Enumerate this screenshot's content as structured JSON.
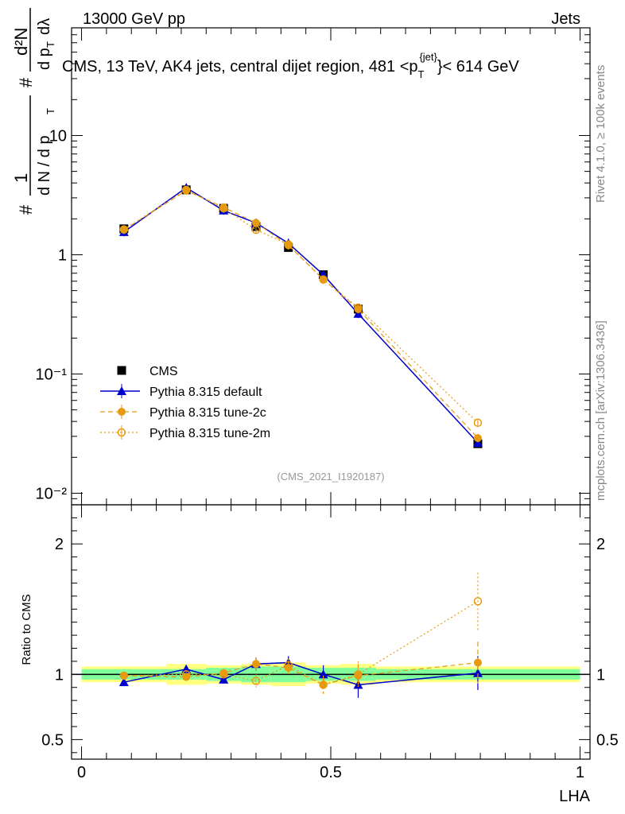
{
  "header": {
    "left": "13000 GeV pp",
    "right": "Jets"
  },
  "title": {
    "main": "CMS, 13 TeV, AK4 jets, central dijet region, 481 <p",
    "sub": "T",
    "sup": "{jet}",
    "tail": "}< 614 GeV"
  },
  "ylabel_main": "1/N dN/dpT d²N/dpT dλ",
  "side_labels": {
    "rivet": "Rivet 4.1.0, ≥ 100k events",
    "mcplots": "mcplots.cern.ch [arXiv:1306.3436]"
  },
  "analysis_tag": "(CMS_2021_I1920187)",
  "ratio_ylabel": "Ratio to CMS",
  "xlabel": "LHA",
  "legend": [
    {
      "name": "CMS",
      "label": "CMS",
      "color": "#000000",
      "marker": "square"
    },
    {
      "name": "pythia-default",
      "label": "Pythia 8.315 default",
      "color": "#0000cc",
      "marker": "triangle"
    },
    {
      "name": "pythia-tune-2c",
      "label": "Pythia 8.315 tune-2c",
      "color": "#e69a10",
      "marker": "dot"
    },
    {
      "name": "pythia-tune-2m",
      "label": "Pythia 8.315 tune-2m",
      "color": "#e69a10",
      "marker": "circle"
    }
  ],
  "main_axis": {
    "yscale": "log",
    "ylim": [
      0.008,
      80
    ],
    "ytick_labels": [
      "10⁻²",
      "10⁻¹",
      "1",
      "10"
    ],
    "ytick_values": [
      0.01,
      0.1,
      1,
      10
    ]
  },
  "ratio_axis": {
    "ylim": [
      0.35,
      2.3
    ],
    "ytick_labels": [
      "0.5",
      "1",
      "2"
    ],
    "ytick_values": [
      0.5,
      1,
      2
    ]
  },
  "x_axis": {
    "xlim": [
      -0.02,
      1.02
    ],
    "xtick_labels": [
      "0",
      "0.5",
      "1"
    ],
    "xtick_values": [
      0,
      0.5,
      1
    ]
  },
  "chart_data": {
    "type": "scatter",
    "title": "CMS, 13 TeV, AK4 jets, central dijet region, 481 < pT{jet} < 614 GeV",
    "xlabel": "LHA",
    "ylabel": "1/N dN/dpT d²N/dpT dλ",
    "bins": [
      [
        0,
        0.17
      ],
      [
        0.17,
        0.25
      ],
      [
        0.25,
        0.32
      ],
      [
        0.32,
        0.38
      ],
      [
        0.38,
        0.45
      ],
      [
        0.45,
        0.52
      ],
      [
        0.52,
        0.59
      ],
      [
        0.59,
        1.0
      ]
    ],
    "x": [
      0.085,
      0.21,
      0.285,
      0.35,
      0.415,
      0.485,
      0.555,
      0.795
    ],
    "series": [
      {
        "name": "CMS",
        "values": [
          1.65,
          3.5,
          2.45,
          1.72,
          1.15,
          0.68,
          0.35,
          0.026
        ],
        "stat_band": [
          0.04,
          0.04,
          0.05,
          0.06,
          0.06,
          0.05,
          0.05,
          0.04
        ],
        "total_band": [
          0.06,
          0.08,
          0.07,
          0.08,
          0.09,
          0.07,
          0.08,
          0.06
        ]
      },
      {
        "name": "Pythia 8.315 default",
        "values": [
          1.55,
          3.65,
          2.35,
          1.85,
          1.25,
          0.68,
          0.32,
          0.0265
        ],
        "ratio": [
          0.94,
          1.04,
          0.96,
          1.08,
          1.09,
          1.0,
          0.92,
          1.01
        ],
        "ratio_err": [
          0.02,
          0.03,
          0.03,
          0.05,
          0.05,
          0.07,
          0.1,
          0.13
        ]
      },
      {
        "name": "Pythia 8.315 tune-2c",
        "values": [
          1.62,
          3.45,
          2.5,
          1.85,
          1.2,
          0.62,
          0.35,
          0.029
        ],
        "ratio": [
          0.99,
          0.98,
          1.01,
          1.08,
          1.05,
          0.92,
          0.99,
          1.09
        ],
        "ratio_err": [
          0.02,
          0.03,
          0.03,
          0.05,
          0.05,
          0.07,
          0.09,
          0.16
        ]
      },
      {
        "name": "Pythia 8.315 tune-2m",
        "values": [
          1.63,
          3.5,
          2.45,
          1.62,
          1.22,
          0.62,
          0.36,
          0.039
        ],
        "ratio": [
          0.99,
          1.0,
          1.0,
          0.95,
          1.07,
          0.92,
          1.0,
          1.56
        ],
        "ratio_err": [
          0.02,
          0.03,
          0.03,
          0.05,
          0.05,
          0.07,
          0.1,
          0.22
        ]
      }
    ]
  }
}
